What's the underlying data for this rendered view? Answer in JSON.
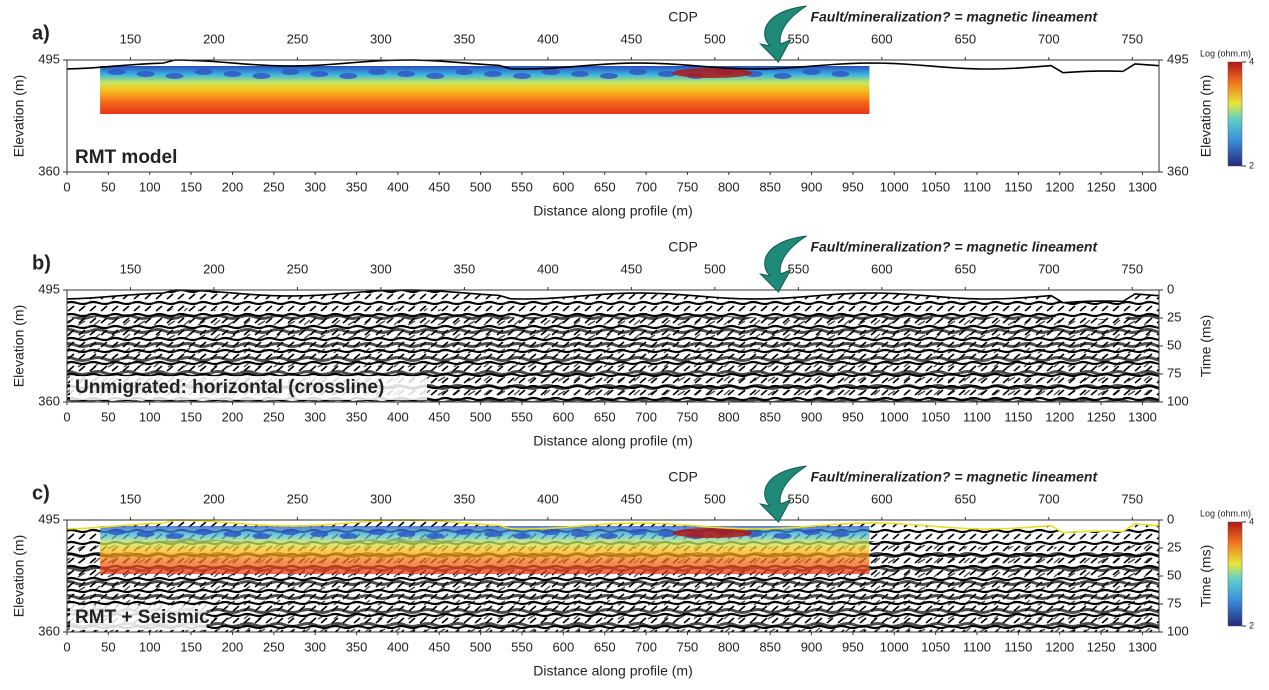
{
  "panels": [
    {
      "label": "a)",
      "title": "RMT model",
      "cdp_axis": {
        "label": "CDP",
        "range": [
          112,
          766
        ],
        "ticks": [
          150,
          200,
          250,
          300,
          350,
          400,
          450,
          500,
          550,
          600,
          650,
          700,
          750
        ]
      },
      "distance_axis": {
        "label": "Distance along profile (m)",
        "range": [
          0,
          1320
        ],
        "ticks": [
          0,
          50,
          100,
          150,
          200,
          250,
          300,
          350,
          400,
          450,
          500,
          550,
          600,
          650,
          700,
          750,
          800,
          850,
          900,
          950,
          1000,
          1050,
          1100,
          1150,
          1200,
          1250,
          1300
        ]
      },
      "left_axis": {
        "label": "Elevation (m)",
        "range": [
          360,
          495
        ],
        "ticks": [
          495,
          360
        ]
      },
      "right_axis": {
        "label": "Elevation (m)",
        "range": [
          360,
          495
        ],
        "ticks": [
          495,
          360
        ]
      },
      "annotation": "Fault/mineralization? = magnetic lineament",
      "colorbar": {
        "label": "Log (ohm.m)",
        "range": [
          2,
          4
        ],
        "ticks": [
          4,
          2
        ]
      }
    },
    {
      "label": "b)",
      "title": "Unmigrated: horizontal (crossline)",
      "cdp_axis": {
        "label": "CDP",
        "range": [
          112,
          766
        ],
        "ticks": [
          150,
          200,
          250,
          300,
          350,
          400,
          450,
          500,
          550,
          600,
          650,
          700,
          750
        ]
      },
      "distance_axis": {
        "label": "Distance along profile (m)",
        "range": [
          0,
          1320
        ],
        "ticks": [
          0,
          50,
          100,
          150,
          200,
          250,
          300,
          350,
          400,
          450,
          500,
          550,
          600,
          650,
          700,
          750,
          800,
          850,
          900,
          950,
          1000,
          1050,
          1100,
          1150,
          1200,
          1250,
          1300
        ]
      },
      "left_axis": {
        "label": "Elevation (m)",
        "range": [
          360,
          495
        ],
        "ticks": [
          495,
          360
        ]
      },
      "right_axis": {
        "label": "Time (ms)",
        "range": [
          100,
          0
        ],
        "ticks": [
          0,
          25,
          50,
          75,
          100
        ]
      },
      "annotation": "Fault/mineralization? = magnetic lineament"
    },
    {
      "label": "c)",
      "title": "RMT + Seismic",
      "cdp_axis": {
        "label": "CDP",
        "range": [
          112,
          766
        ],
        "ticks": [
          150,
          200,
          250,
          300,
          350,
          400,
          450,
          500,
          550,
          600,
          650,
          700,
          750
        ]
      },
      "distance_axis": {
        "label": "Distance along profile (m)",
        "range": [
          0,
          1320
        ],
        "ticks": [
          0,
          50,
          100,
          150,
          200,
          250,
          300,
          350,
          400,
          450,
          500,
          550,
          600,
          650,
          700,
          750,
          800,
          850,
          900,
          950,
          1000,
          1050,
          1100,
          1150,
          1200,
          1250,
          1300
        ]
      },
      "left_axis": {
        "label": "Elevation (m)",
        "range": [
          360,
          495
        ],
        "ticks": [
          495,
          360
        ]
      },
      "right_axis": {
        "label": "Time (ms)",
        "range": [
          100,
          0
        ],
        "ticks": [
          0,
          25,
          50,
          75,
          100
        ]
      },
      "annotation": "Fault/mineralization? = magnetic lineament",
      "colorbar": {
        "label": "Log (ohm.m)",
        "range": [
          2,
          4
        ],
        "ticks": [
          4,
          2
        ]
      }
    }
  ]
}
